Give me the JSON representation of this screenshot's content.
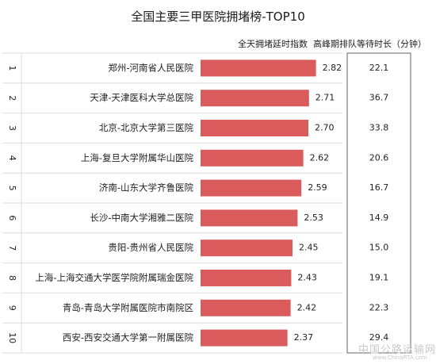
{
  "title": "全国主要三甲医院拥堵榜-TOP10",
  "columns": {
    "index_label": "全天拥堵延时指数",
    "wait_label": "高峰期排队等待时长（分钟）"
  },
  "watermark": {
    "text": "中国公路运输网",
    "sub": "www.ChinaRTA.com"
  },
  "colors": {
    "bar": "#d95b5b",
    "grid": "#dedede",
    "box_border": "#666666",
    "text": "#222222"
  },
  "chart_data": {
    "type": "bar",
    "orientation": "horizontal",
    "title": "全国主要三甲医院拥堵榜-TOP10",
    "ranks": [
      "1",
      "2",
      "3",
      "4",
      "5",
      "6",
      "7",
      "8",
      "9",
      "10"
    ],
    "categories": [
      "郑州-河南省人民医院",
      "天津-天津医科大学总医院",
      "北京-北京大学第三医院",
      "上海-复旦大学附属华山医院",
      "济南-山东大学齐鲁医院",
      "长沙-中南大学湘雅二医院",
      "贵阳-贵州省人民医院",
      "上海-上海交通大学医学院附属瑞金医院",
      "青岛-青岛大学附属医院市南院区",
      "西安-西安交通大学第一附属医院"
    ],
    "series": [
      {
        "name": "全天拥堵延时指数",
        "values": [
          2.82,
          2.71,
          2.7,
          2.62,
          2.59,
          2.53,
          2.45,
          2.43,
          2.42,
          2.37
        ],
        "labels": [
          "2.82",
          "2.71",
          "2.70",
          "2.62",
          "2.59",
          "2.53",
          "2.45",
          "2.43",
          "2.42",
          "2.37"
        ]
      },
      {
        "name": "高峰期排队等待时长（分钟）",
        "values": [
          22.1,
          36.7,
          33.8,
          20.6,
          16.7,
          14.9,
          15.0,
          19.1,
          22.3,
          29.4
        ],
        "labels": [
          "22.1",
          "36.7",
          "33.8",
          "20.6",
          "16.7",
          "14.9",
          "15.0",
          "19.1",
          "22.3",
          "29.4"
        ]
      }
    ],
    "xlim": [
      1.0,
      3.0
    ],
    "grid": true,
    "legend": "none"
  }
}
